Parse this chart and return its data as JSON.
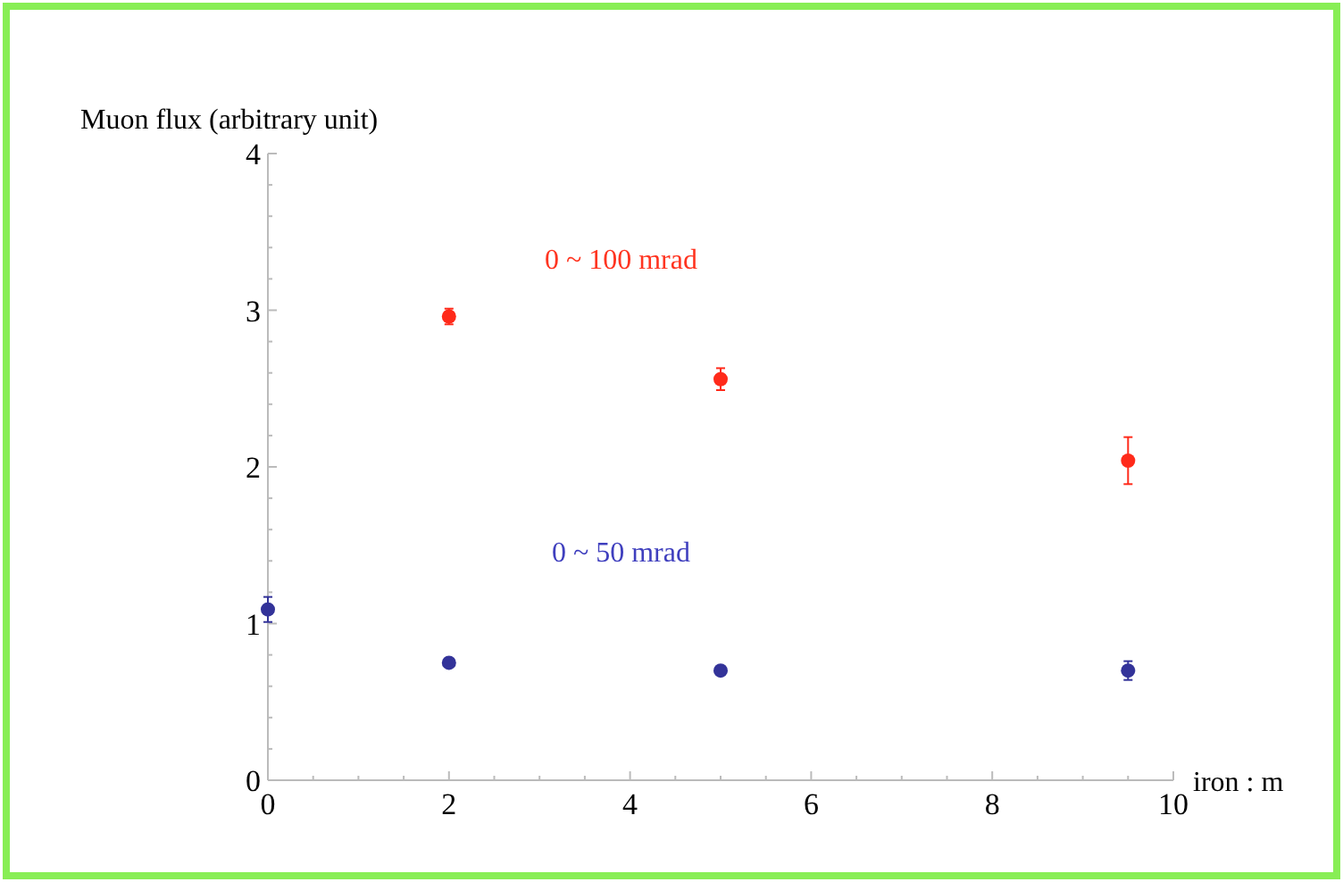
{
  "chart_data": {
    "type": "scatter",
    "xlabel": "iron : m",
    "ylabel": "Muon flux (arbitrary unit)",
    "xlim": [
      0,
      10
    ],
    "xticks": [
      0,
      2,
      4,
      6,
      8,
      10
    ],
    "ylim": [
      0,
      4
    ],
    "yticks": [
      0,
      1,
      2,
      3,
      4
    ],
    "grid": false,
    "marker": "circle",
    "series": [
      {
        "name": "0 ~ 100 mrad",
        "color": "#ff2a1a",
        "x": [
          2,
          5,
          9.5
        ],
        "values": [
          2.96,
          2.56,
          2.04
        ],
        "errors": [
          0.05,
          0.07,
          0.15
        ]
      },
      {
        "name": "0 ~ 50 mrad",
        "color": "#333399",
        "x": [
          0,
          2,
          5,
          9.5
        ],
        "values": [
          1.09,
          0.75,
          0.7,
          0.7
        ],
        "errors": [
          0.08,
          null,
          null,
          0.06
        ]
      }
    ]
  }
}
